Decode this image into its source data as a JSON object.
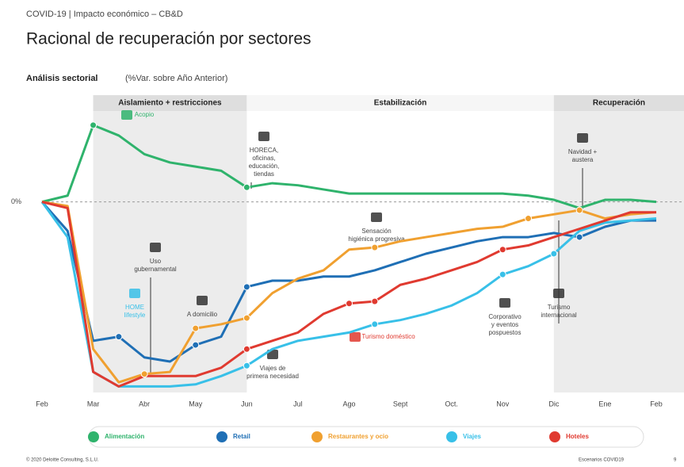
{
  "header": "COVID-19 | Impacto económico – CB&D",
  "footer": {
    "left": "© 2020 Deloitte Consulting, S.L.U.",
    "right": "Escenarios COVID19",
    "page": "9"
  },
  "chart_data": {
    "type": "line",
    "title": "Racional de recuperación por sectores",
    "subtitle": "Análisis sectorial",
    "subtitle_note": "(%Var. sobre Año Anterior)",
    "phases": [
      "Aislamiento + restricciones",
      "Estabilización",
      "Recuperación"
    ],
    "xlim": [
      0,
      12
    ],
    "xticks": [
      {
        "value": 0,
        "label": "Feb"
      },
      {
        "value": 1,
        "label": "Mar"
      },
      {
        "value": 2,
        "label": "Abr"
      },
      {
        "value": 3,
        "label": "May"
      },
      {
        "value": 4,
        "label": "Jun"
      },
      {
        "value": 5,
        "label": "Jul"
      },
      {
        "value": 6,
        "label": "Ago"
      },
      {
        "value": 7,
        "label": "Sept"
      },
      {
        "value": 8,
        "label": "Oct."
      },
      {
        "value": 9,
        "label": "Nov"
      },
      {
        "value": 10,
        "label": "Dic"
      },
      {
        "value": 11,
        "label": "Ene"
      },
      {
        "value": 12,
        "label": "Feb"
      }
    ],
    "ylim": [
      -90,
      40
    ],
    "yticks": [
      {
        "value": 0,
        "label": "0%"
      }
    ],
    "x": [
      0,
      0.5,
      1,
      1.5,
      2,
      2.5,
      3,
      3.5,
      4,
      4.5,
      5,
      5.5,
      6,
      6.5,
      7,
      7.5,
      8,
      8.5,
      9,
      9.5,
      10,
      10.5,
      11,
      11.5,
      12
    ],
    "series": [
      {
        "name": "Alimentación",
        "color": "#2fb36c",
        "values": [
          0,
          3,
          37,
          32,
          23,
          19,
          17,
          15,
          7,
          9,
          8,
          6,
          4,
          4,
          4,
          4,
          4,
          4,
          4,
          3,
          1,
          -3,
          1,
          1,
          0
        ]
      },
      {
        "name": "Retail",
        "color": "#1f6fb5",
        "values": [
          0,
          -14,
          -67,
          -65,
          -75,
          -77,
          -69,
          -65,
          -41,
          -38,
          -38,
          -36,
          -36,
          -33,
          -29,
          -25,
          -22,
          -19,
          -17,
          -17,
          -15,
          -17,
          -12,
          -9,
          -9
        ]
      },
      {
        "name": "Restaurantes y ocio",
        "color": "#f0a030",
        "values": [
          0,
          -2,
          -71,
          -87,
          -83,
          -82,
          -61,
          -59,
          -56,
          -44,
          -37,
          -33,
          -23,
          -22,
          -19,
          -17,
          -15,
          -13,
          -12,
          -8,
          -6,
          -4,
          -8,
          -6,
          -5
        ]
      },
      {
        "name": "Viajes",
        "color": "#38c0e8",
        "values": [
          0,
          -17,
          -82,
          -89,
          -89,
          -89,
          -88,
          -84,
          -79,
          -71,
          -67,
          -65,
          -63,
          -59,
          -57,
          -54,
          -50,
          -44,
          -35,
          -31,
          -25,
          -14,
          -10,
          -9,
          -8
        ]
      },
      {
        "name": "Hoteles",
        "color": "#e03a30",
        "values": [
          0,
          -3,
          -82,
          -89,
          -84,
          -84,
          -84,
          -80,
          -71,
          -67,
          -63,
          -54,
          -49,
          -48,
          -40,
          -37,
          -33,
          -29,
          -23,
          -21,
          -17,
          -13,
          -9,
          -5,
          -5
        ]
      }
    ],
    "annotations": [
      [
        "Acopio"
      ],
      [
        "HORECA,",
        "oficinas,",
        "educación,",
        "tiendas"
      ],
      [
        "Uso",
        "gubernamental"
      ],
      [
        "HOME",
        "lifestyle"
      ],
      [
        "A domicilio"
      ],
      [
        "Viajes de",
        "primera necesidad"
      ],
      [
        "Sensación",
        "higiénica progresiva"
      ],
      [
        "Turismo doméstico"
      ],
      [
        "Corporativo",
        "y eventos",
        "pospuestos"
      ],
      [
        "Turismo",
        "internacional"
      ],
      [
        "Navidad +",
        "austera"
      ]
    ]
  }
}
